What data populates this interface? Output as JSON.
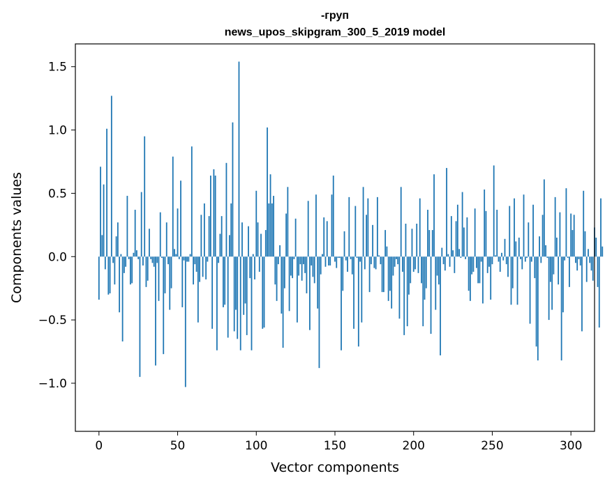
{
  "chart_data": {
    "type": "bar",
    "title": "-груп",
    "subtitle": "news_upos_skipgram_300_5_2019 model",
    "xlabel": "Vector components",
    "ylabel": "Components values",
    "xlim": [
      -15,
      315
    ],
    "ylim": [
      -1.38,
      1.68
    ],
    "xticks": [
      0,
      50,
      100,
      150,
      200,
      250,
      300
    ],
    "xtick_labels": [
      "0",
      "50",
      "100",
      "150",
      "200",
      "250",
      "300"
    ],
    "yticks": [
      -1.0,
      -0.5,
      0.0,
      0.5,
      1.0,
      1.5
    ],
    "ytick_labels": [
      "−1.0",
      "−0.5",
      "0.0",
      "0.5",
      "1.0",
      "1.5"
    ],
    "bar_color": "#1f77b4",
    "grid": false,
    "values": [
      -0.34,
      0.71,
      0.17,
      0.57,
      -0.1,
      1.01,
      -0.3,
      -0.29,
      1.27,
      -0.05,
      -0.22,
      0.16,
      0.27,
      -0.44,
      0.02,
      -0.67,
      -0.13,
      -0.08,
      0.48,
      -0.02,
      -0.22,
      -0.21,
      0.03,
      0.37,
      0.05,
      -0.02,
      -0.95,
      0.51,
      -0.07,
      0.95,
      -0.24,
      -0.19,
      0.22,
      -0.02,
      -0.05,
      -0.08,
      -0.86,
      -0.05,
      -0.35,
      0.35,
      -0.01,
      -0.77,
      -0.29,
      0.27,
      -0.06,
      -0.42,
      -0.25,
      0.79,
      0.06,
      0.02,
      0.38,
      -0.02,
      0.6,
      -0.4,
      -0.03,
      -1.03,
      -0.04,
      -0.04,
      0.02,
      0.87,
      -0.22,
      -0.06,
      -0.12,
      -0.52,
      -0.2,
      0.33,
      -0.16,
      0.42,
      -0.18,
      -0.04,
      0.32,
      0.64,
      -0.57,
      0.69,
      0.64,
      -0.74,
      -0.05,
      0.18,
      0.32,
      -0.4,
      -0.38,
      0.74,
      -0.64,
      0.17,
      0.42,
      1.06,
      -0.59,
      -0.42,
      -0.65,
      1.54,
      -0.74,
      0.27,
      -0.46,
      -0.37,
      -0.62,
      0.24,
      -0.17,
      -0.74,
      0.02,
      -0.18,
      0.52,
      0.27,
      -0.12,
      0.18,
      -0.57,
      -0.56,
      0.21,
      1.02,
      0.42,
      0.65,
      0.42,
      0.48,
      -0.22,
      -0.35,
      -0.06,
      0.09,
      -0.45,
      -0.72,
      -0.25,
      0.34,
      0.55,
      -0.43,
      -0.15,
      -0.17,
      -0.02,
      0.3,
      -0.52,
      -0.15,
      -0.06,
      -0.19,
      -0.06,
      -0.13,
      -0.29,
      0.44,
      -0.58,
      -0.07,
      -0.16,
      -0.21,
      0.49,
      -0.41,
      -0.88,
      -0.14,
      0.02,
      0.31,
      -0.08,
      0.28,
      -0.07,
      -0.07,
      0.49,
      0.64,
      -0.04,
      -0.09,
      -0.01,
      -0.01,
      -0.74,
      -0.27,
      0.2,
      -0.03,
      -0.12,
      0.47,
      -0.02,
      -0.14,
      -0.57,
      0.4,
      -0.01,
      -0.71,
      -0.04,
      -0.52,
      0.55,
      -0.1,
      0.33,
      0.46,
      -0.28,
      -0.06,
      0.25,
      -0.09,
      -0.1,
      0.47,
      0.01,
      -0.06,
      -0.28,
      -0.28,
      0.21,
      0.08,
      -0.35,
      -0.27,
      -0.41,
      -0.15,
      -0.08,
      -0.02,
      -0.06,
      -0.49,
      0.55,
      -0.12,
      -0.62,
      0.26,
      -0.55,
      -0.3,
      -0.21,
      0.22,
      -0.12,
      -0.1,
      0.26,
      -0.13,
      0.46,
      -0.21,
      -0.55,
      -0.34,
      -0.25,
      0.37,
      0.21,
      -0.61,
      0.21,
      0.65,
      -0.42,
      -0.15,
      -0.22,
      -0.78,
      0.07,
      -0.06,
      -0.11,
      0.7,
      0.02,
      -0.08,
      0.32,
      0.05,
      -0.13,
      0.28,
      0.41,
      0.06,
      -0.01,
      0.51,
      0.23,
      -0.02,
      0.31,
      -0.27,
      -0.35,
      -0.14,
      -0.12,
      0.38,
      -0.09,
      -0.21,
      -0.21,
      -0.04,
      -0.37,
      0.53,
      0.36,
      -0.13,
      -0.08,
      -0.34,
      -0.06,
      0.72,
      0.01,
      0.37,
      -0.04,
      -0.12,
      0.03,
      -0.03,
      0.14,
      -0.06,
      -0.16,
      0.4,
      -0.38,
      -0.25,
      0.46,
      0.12,
      -0.38,
      0.15,
      -0.02,
      -0.1,
      0.49,
      -0.04,
      -0.01,
      0.27,
      -0.53,
      -0.04,
      0.41,
      -0.17,
      -0.71,
      -0.82,
      0.16,
      -0.05,
      0.33,
      0.61,
      0.09,
      -0.01,
      -0.5,
      -0.2,
      -0.42,
      -0.14,
      0.47,
      0.15,
      -0.22,
      0.35,
      -0.82,
      -0.44,
      -0.03,
      0.54,
      -0.01,
      -0.24,
      0.34,
      0.21,
      0.33,
      -0.05,
      -0.11,
      -0.02,
      -0.07,
      -0.59,
      0.52,
      0.2,
      -0.2,
      0.06,
      -0.05,
      -0.11,
      -0.19,
      0.23,
      0.15,
      -0.24,
      -0.56,
      0.46,
      0.08
    ]
  }
}
